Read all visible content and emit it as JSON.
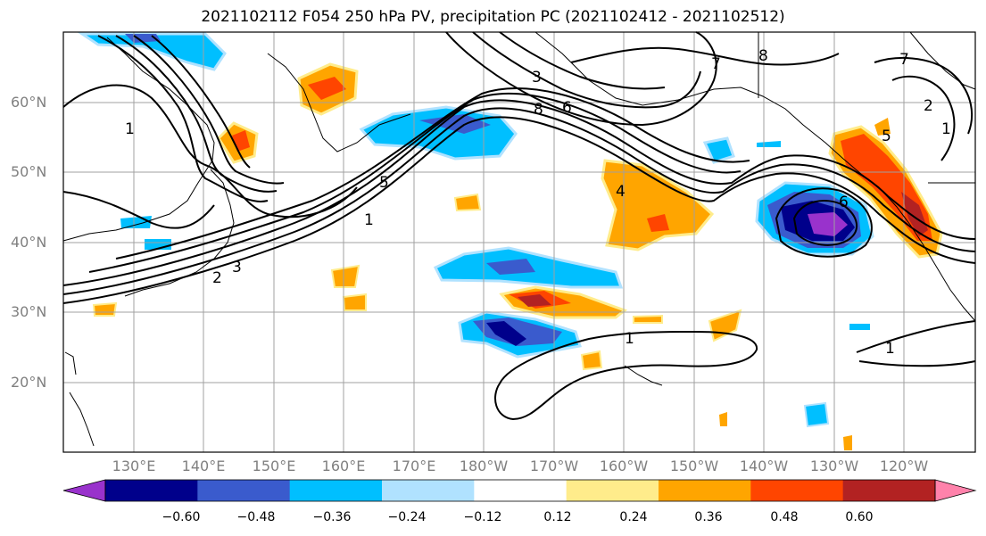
{
  "title": "2021102112 F054 250 hPa PV, precipitation PC (2021102412 - 2021102512)",
  "lat_labels": [
    "60°N",
    "50°N",
    "40°N",
    "30°N",
    "20°N"
  ],
  "lon_labels": [
    "130°E",
    "140°E",
    "150°E",
    "160°E",
    "170°E",
    "180°W",
    "170°W",
    "160°W",
    "150°W",
    "140°W",
    "130°W",
    "120°W"
  ],
  "colorbar": {
    "ticks": [
      "−0.60",
      "−0.48",
      "−0.36",
      "−0.24",
      "−0.12",
      "0.12",
      "0.24",
      "0.36",
      "0.48",
      "0.60"
    ],
    "colors": [
      "#9932cc",
      "#00008b",
      "#3a5bcd",
      "#00bfff",
      "#b0e2ff",
      "#ffffff",
      "#ffec8b",
      "#ffa500",
      "#ff4500",
      "#b22222",
      "#ff82ab"
    ]
  },
  "contour_labels": [
    "1",
    "2",
    "3",
    "4",
    "5",
    "6",
    "7",
    "8"
  ],
  "colors": {
    "contour": "#000000",
    "grid": "#a0a0a0",
    "axis_label": "#808080"
  }
}
